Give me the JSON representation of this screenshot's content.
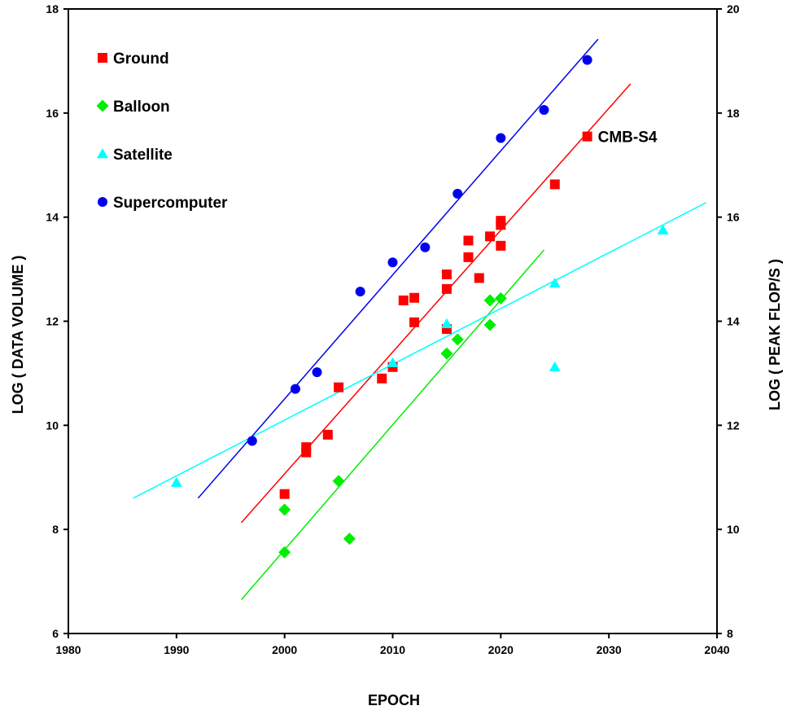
{
  "chart_data": {
    "type": "scatter",
    "xlabel": "EPOCH",
    "ylabel": "LOG ( DATA VOLUME )",
    "y2label": "LOG ( PEAK FLOP/S )",
    "xlim": [
      1980,
      2040
    ],
    "ylim": [
      6,
      18
    ],
    "y2lim": [
      8,
      20
    ],
    "x_ticks": [
      1980,
      1990,
      2000,
      2010,
      2020,
      2030,
      2040
    ],
    "y_ticks": [
      6,
      8,
      10,
      12,
      14,
      16,
      18
    ],
    "y2_ticks": [
      8,
      10,
      12,
      14,
      16,
      18,
      20
    ],
    "grid": false,
    "legend_position": "top-left",
    "annotations": [
      {
        "text": "CMB-S4",
        "x": 2028,
        "y": 15.55
      }
    ],
    "series": [
      {
        "name": "Ground",
        "marker": "square",
        "color": "#ff0000",
        "axis": "left",
        "points": [
          [
            2000,
            8.68
          ],
          [
            2002,
            9.48
          ],
          [
            2002,
            9.58
          ],
          [
            2004,
            9.82
          ],
          [
            2005,
            10.73
          ],
          [
            2009,
            10.9
          ],
          [
            2010,
            11.12
          ],
          [
            2011,
            12.4
          ],
          [
            2012,
            12.45
          ],
          [
            2012,
            11.98
          ],
          [
            2015,
            11.85
          ],
          [
            2015,
            12.62
          ],
          [
            2015,
            12.9
          ],
          [
            2017,
            13.55
          ],
          [
            2017,
            13.23
          ],
          [
            2018,
            12.83
          ],
          [
            2019,
            13.63
          ],
          [
            2020,
            13.93
          ],
          [
            2020,
            13.85
          ],
          [
            2020,
            13.45
          ],
          [
            2025,
            14.63
          ],
          [
            2028,
            15.55
          ]
        ],
        "fit": [
          [
            1996,
            8.13
          ],
          [
            2032,
            16.56
          ]
        ]
      },
      {
        "name": "Balloon",
        "marker": "diamond",
        "color": "#00ee00",
        "axis": "left",
        "points": [
          [
            2000,
            8.38
          ],
          [
            2000,
            7.56
          ],
          [
            2005,
            8.93
          ],
          [
            2006,
            7.82
          ],
          [
            2015,
            11.38
          ],
          [
            2016,
            11.65
          ],
          [
            2019,
            12.4
          ],
          [
            2019,
            11.93
          ],
          [
            2020,
            12.44
          ]
        ],
        "fit": [
          [
            1996,
            6.65
          ],
          [
            2024,
            13.37
          ]
        ]
      },
      {
        "name": "Satellite",
        "marker": "triangle",
        "color": "#00ffff",
        "axis": "left",
        "points": [
          [
            1990,
            8.9
          ],
          [
            2010,
            11.2
          ],
          [
            2015,
            11.95
          ],
          [
            2025,
            12.73
          ],
          [
            2025,
            11.12
          ],
          [
            2035,
            13.75
          ]
        ],
        "fit": [
          [
            1986,
            8.6
          ],
          [
            2039,
            14.28
          ]
        ]
      },
      {
        "name": "Supercomputer",
        "marker": "circle",
        "color": "#0000ee",
        "axis": "left",
        "points": [
          [
            1997,
            9.7
          ],
          [
            2001,
            10.7
          ],
          [
            2003,
            11.02
          ],
          [
            2007,
            12.57
          ],
          [
            2010,
            13.13
          ],
          [
            2013,
            13.42
          ],
          [
            2016,
            14.45
          ],
          [
            2020,
            15.52
          ],
          [
            2024,
            16.06
          ],
          [
            2028,
            17.02
          ]
        ],
        "fit": [
          [
            1992,
            8.6
          ],
          [
            2029,
            17.42
          ]
        ]
      }
    ]
  }
}
